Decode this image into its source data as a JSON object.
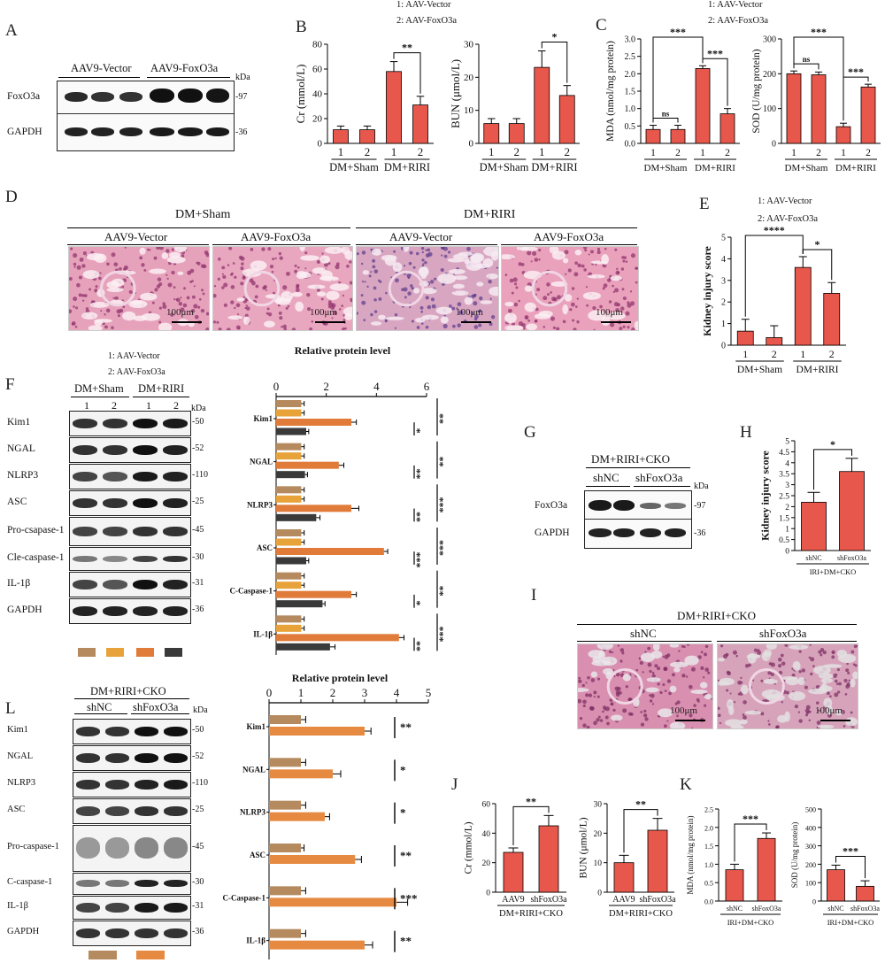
{
  "colors": {
    "bar": "#e8574b",
    "c1": "#b58a5e",
    "c2": "#e7a33a",
    "c3": "#e07b39",
    "c4": "#3a3a3a",
    "c5": "#e68a42"
  },
  "panelA": {
    "label": "A",
    "groups": [
      "AAV9-Vector",
      "AAV9-FoxO3a"
    ],
    "kda": "kDa",
    "rows": [
      {
        "name": "FoxO3a",
        "mw": "-97"
      },
      {
        "name": "GAPDH",
        "mw": "-36"
      }
    ]
  },
  "panelB": {
    "label": "B",
    "legend": [
      "1: AAV-Vector",
      "2: AAV-FoxO3a"
    ]
  },
  "panelC": {
    "label": "C",
    "legend": [
      "1: AAV-Vector",
      "2: AAV-FoxO3a"
    ]
  },
  "panelD": {
    "label": "D",
    "top": [
      "DM+Sham",
      "DM+RIRI"
    ],
    "sub": [
      "AAV9-Vector",
      "AAV9-FoxO3a",
      "AAV9-Vector",
      "AAV9-FoxO3a"
    ],
    "scale": "100μm"
  },
  "panelE": {
    "label": "E",
    "legend": [
      "1: AAV-Vector",
      "2: AAV-FoxO3a"
    ]
  },
  "panelF": {
    "label": "F",
    "legend": [
      "1: AAV-Vector",
      "2: AAV-FoxO3a"
    ],
    "groups": [
      "DM+Sham",
      "DM+RIRI"
    ],
    "lanes": [
      "1",
      "2",
      "1",
      "2"
    ],
    "kda": "kDa",
    "rows": [
      {
        "name": "Kim1",
        "mw": "-50"
      },
      {
        "name": "NGAL",
        "mw": "-52"
      },
      {
        "name": "NLRP3",
        "mw": "-110"
      },
      {
        "name": "ASC",
        "mw": "-25"
      },
      {
        "name": "Pro-csapase-1",
        "mw": "-45"
      },
      {
        "name": "Cle-caspase-1",
        "mw": "-30"
      },
      {
        "name": "IL-1β",
        "mw": "-31"
      },
      {
        "name": "GAPDH",
        "mw": "-36"
      }
    ]
  },
  "panelG": {
    "label": "G",
    "title": "DM+RIRI+CKO",
    "groups": [
      "shNC",
      "shFoxO3a"
    ],
    "kda": "kDa",
    "rows": [
      {
        "name": "FoxO3a",
        "mw": "-97"
      },
      {
        "name": "GAPDH",
        "mw": "-36"
      }
    ]
  },
  "panelH": {
    "label": "H"
  },
  "panelI": {
    "label": "I",
    "title": "DM+RIRI+CKO",
    "sub": [
      "shNC",
      "shFoxO3a"
    ],
    "scale": "100μm"
  },
  "panelL": {
    "label": "L",
    "title": "DM+RIRI+CKO",
    "groups": [
      "shNC",
      "shFoxO3a"
    ],
    "kda": "kDa",
    "rows": [
      {
        "name": "Kim1",
        "mw": "-50"
      },
      {
        "name": "NGAL",
        "mw": "-52"
      },
      {
        "name": "NLRP3",
        "mw": "-110"
      },
      {
        "name": "ASC",
        "mw": "-25"
      },
      {
        "name": "Pro-caspase-1",
        "mw": "-45"
      },
      {
        "name": "C-caspase-1",
        "mw": "-30"
      },
      {
        "name": "IL-1β",
        "mw": "-31"
      },
      {
        "name": "GAPDH",
        "mw": "-36"
      }
    ]
  },
  "panelJ": {
    "label": "J"
  },
  "panelK": {
    "label": "K"
  },
  "chart_data": [
    {
      "id": "B-Cr",
      "type": "bar",
      "categories": [
        "1",
        "2",
        "1",
        "2"
      ],
      "groups": [
        "DM+Sham",
        "DM+RIRI"
      ],
      "values": [
        11,
        11,
        58,
        31
      ],
      "errors": [
        3,
        3,
        8,
        7
      ],
      "ylabel": "Cr (mmol/L)",
      "ylim": [
        0,
        80
      ],
      "ticks": [
        0,
        20,
        40,
        60,
        80
      ],
      "sig": [
        {
          "a": 2,
          "b": 3,
          "label": "**"
        }
      ]
    },
    {
      "id": "B-BUN",
      "type": "bar",
      "categories": [
        "1",
        "2",
        "1",
        "2"
      ],
      "groups": [
        "DM+Sham",
        "DM+RIRI"
      ],
      "values": [
        6,
        6,
        23,
        14.5
      ],
      "errors": [
        1.5,
        1.5,
        5,
        3
      ],
      "ylabel": "BUN  (μmol/L)",
      "ylim": [
        0,
        30
      ],
      "ticks": [
        0,
        10,
        20,
        30
      ],
      "sig": [
        {
          "a": 2,
          "b": 3,
          "label": "*"
        }
      ]
    },
    {
      "id": "C-MDA",
      "type": "bar",
      "categories": [
        "1",
        "2",
        "1",
        "2"
      ],
      "groups": [
        "DM+Sham",
        "DM+RIRI"
      ],
      "values": [
        0.4,
        0.4,
        2.15,
        0.85
      ],
      "errors": [
        0.12,
        0.12,
        0.08,
        0.15
      ],
      "ylabel": "MDA (nmol/mg protein)",
      "ylim": [
        0,
        3
      ],
      "ticks": [
        0.0,
        0.5,
        1.0,
        1.5,
        2.0,
        2.5,
        3.0
      ],
      "tickfmt": 1,
      "sig": [
        {
          "a": 0,
          "b": 1,
          "label": "ns"
        },
        {
          "a": 2,
          "b": 3,
          "label": "***"
        },
        {
          "a": 0,
          "b": 2,
          "label": "***"
        }
      ]
    },
    {
      "id": "C-SOD",
      "type": "bar",
      "categories": [
        "1",
        "2",
        "1",
        "2"
      ],
      "groups": [
        "DM+Sham",
        "DM+RIRI"
      ],
      "values": [
        200,
        197,
        48,
        162
      ],
      "errors": [
        8,
        8,
        10,
        8
      ],
      "ylabel": "SOD (U/mg protein)",
      "ylim": [
        0,
        300
      ],
      "ticks": [
        0,
        100,
        200,
        300
      ],
      "sig": [
        {
          "a": 0,
          "b": 1,
          "label": "ns"
        },
        {
          "a": 2,
          "b": 3,
          "label": "***"
        },
        {
          "a": 0,
          "b": 2,
          "label": "***"
        }
      ]
    },
    {
      "id": "E",
      "type": "bar",
      "categories": [
        "1",
        "2",
        "1",
        "2"
      ],
      "groups": [
        "DM+Sham",
        "DM+RIRI"
      ],
      "values": [
        0.65,
        0.35,
        3.6,
        2.4
      ],
      "errors": [
        0.55,
        0.55,
        0.5,
        0.5
      ],
      "ylabel": "Kidney injury score",
      "ylim": [
        0,
        5
      ],
      "ticks": [
        0,
        1,
        2,
        3,
        4,
        5
      ],
      "sig": [
        {
          "a": 2,
          "b": 3,
          "label": "*"
        },
        {
          "a": 0,
          "b": 2,
          "label": "****"
        }
      ]
    },
    {
      "id": "F-hbar",
      "type": "bar",
      "orientation": "horizontal",
      "title": "Relative protein level",
      "categories": [
        "Kim1",
        "NGAL",
        "NLRP3",
        "ASC",
        "C-Caspase-1",
        "IL-1β"
      ],
      "xlim": [
        0,
        6
      ],
      "ticks": [
        0,
        2,
        4,
        6
      ],
      "series": [
        {
          "values": [
            1,
            1,
            1,
            1,
            1,
            1
          ],
          "errors": [
            0.12,
            0.12,
            0.12,
            0.12,
            0.12,
            0.12
          ]
        },
        {
          "values": [
            1,
            1,
            1,
            1,
            1,
            1
          ],
          "errors": [
            0.12,
            0.12,
            0.12,
            0.12,
            0.12,
            0.12
          ]
        },
        {
          "values": [
            3,
            2.5,
            3,
            4.3,
            3,
            4.9
          ],
          "errors": [
            0.2,
            0.2,
            0.3,
            0.15,
            0.2,
            0.2
          ]
        },
        {
          "values": [
            1.2,
            1.15,
            1.6,
            1.2,
            1.85,
            2.15
          ],
          "errors": [
            0.1,
            0.1,
            0.15,
            0.1,
            0.1,
            0.2
          ]
        }
      ],
      "sig": [
        [
          "**",
          "*"
        ],
        [
          "**",
          "**"
        ],
        [
          "***",
          "**"
        ],
        [
          "***",
          "***"
        ],
        [
          "**",
          "*"
        ],
        [
          "***",
          "**"
        ]
      ]
    },
    {
      "id": "H",
      "type": "bar",
      "categories": [
        "shNC",
        "shFoxO3a"
      ],
      "group": "IRI+DM+CKO",
      "values": [
        2.2,
        3.6
      ],
      "errors": [
        0.45,
        0.6
      ],
      "ylabel": "Kidney injury score",
      "ylim": [
        0,
        5
      ],
      "ticks": [
        0,
        0.5,
        1,
        1.5,
        2,
        2.5,
        3,
        3.5,
        4,
        4.5,
        5
      ],
      "sig": [
        {
          "a": 0,
          "b": 1,
          "label": "*"
        }
      ]
    },
    {
      "id": "L-hbar",
      "type": "bar",
      "orientation": "horizontal",
      "title": "Relative protein level",
      "categories": [
        "Kim1",
        "NGAL",
        "NLRP3",
        "ASC",
        "C-Caspase-1",
        "IL-1β"
      ],
      "xlim": [
        0,
        5
      ],
      "ticks": [
        0,
        1,
        2,
        3,
        4,
        5
      ],
      "series": [
        {
          "values": [
            1,
            1,
            1,
            1,
            1,
            1
          ],
          "errors": [
            0.15,
            0.15,
            0.15,
            0.1,
            0.15,
            0.15
          ]
        },
        {
          "values": [
            3,
            2,
            1.75,
            2.7,
            4,
            3
          ],
          " errors": [
            0.2,
            0.25,
            0.15,
            0.2,
            0.35,
            0.25
          ]
        }
      ],
      "sig": [
        "**",
        "*",
        "*",
        "**",
        "***",
        "**"
      ]
    },
    {
      "id": "J-Cr",
      "type": "bar",
      "categories": [
        "AAV9",
        "shFoxO3a"
      ],
      "group": "DM+RIRI+CKO",
      "values": [
        27,
        45
      ],
      "errors": [
        3,
        7
      ],
      "ylabel": "Cr (mmol/L)",
      "ylim": [
        0,
        60
      ],
      "ticks": [
        0,
        20,
        40,
        60
      ],
      "sig": [
        {
          "a": 0,
          "b": 1,
          "label": "**"
        }
      ]
    },
    {
      "id": "J-BUN",
      "type": "bar",
      "categories": [
        "AAV9",
        "shFoxO3a"
      ],
      "group": "DM+RIRI+CKO",
      "values": [
        10,
        21
      ],
      "errors": [
        2.5,
        4
      ],
      "ylabel": "BUN (μmol/L)",
      "ylim": [
        0,
        30
      ],
      "ticks": [
        0,
        10,
        20,
        30
      ],
      "sig": [
        {
          "a": 0,
          "b": 1,
          "label": "**"
        }
      ]
    },
    {
      "id": "K-MDA",
      "type": "bar",
      "categories": [
        "shNC",
        "shFoxO3a"
      ],
      "group": "IRI+DM+CKO",
      "values": [
        0.85,
        1.7
      ],
      "errors": [
        0.15,
        0.15
      ],
      "ylabel": "MDA (nmol/mg protein)",
      "ylim": [
        0,
        2.5
      ],
      "ticks": [
        0.0,
        0.5,
        1.0,
        1.5,
        2.0,
        2.5
      ],
      "tickfmt": 1,
      "sig": [
        {
          "a": 0,
          "b": 1,
          "label": "***"
        }
      ]
    },
    {
      "id": "K-SOD",
      "type": "bar",
      "categories": [
        "shNC",
        "shFoxO3a"
      ],
      "group": "IRI+DM+CKO",
      "values": [
        170,
        80
      ],
      "errors": [
        25,
        30
      ],
      "ylabel": "SOD (U/mg protein)",
      "ylim": [
        0,
        500
      ],
      "ticks": [
        0,
        100,
        200,
        300,
        400,
        500
      ],
      "sig": [
        {
          "a": 0,
          "b": 1,
          "label": "***"
        }
      ]
    }
  ]
}
